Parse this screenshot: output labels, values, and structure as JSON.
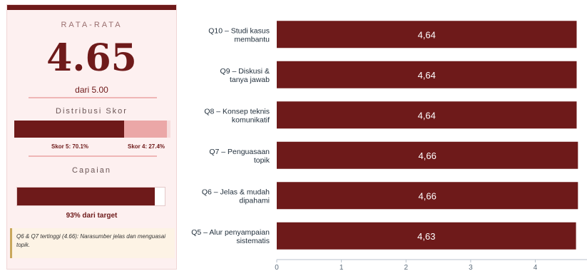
{
  "summary": {
    "avg_label": "RATA-RATA",
    "avg_value": "4.65",
    "avg_sub": "dari 5.00",
    "dist_title": "Distribusi Skor",
    "dist_segments": [
      {
        "label": "Skor 5: 70.1%",
        "percent": 70.1
      },
      {
        "label": "Skor 4: 27.4%",
        "percent": 27.4
      }
    ],
    "ach_title": "Capaian",
    "ach_percent": 93,
    "ach_label": "93% dari target",
    "note": "Q6 & Q7 tertinggi (4.66): Narasumber jelas dan menguasai topik."
  },
  "chart_data": {
    "type": "bar",
    "orientation": "horizontal",
    "categories": [
      [
        "Q10 – Studi kasus",
        "membantu"
      ],
      [
        "Q9 – Diskusi &",
        "tanya jawab"
      ],
      [
        "Q8 – Konsep teknis",
        "komunikatif"
      ],
      [
        "Q7 – Penguasaan",
        "topik"
      ],
      [
        "Q6 – Jelas & mudah",
        "dipahami"
      ],
      [
        "Q5 – Alur penyampaian",
        "sistematis"
      ]
    ],
    "values": [
      4.64,
      4.64,
      4.64,
      4.66,
      4.66,
      4.63
    ],
    "value_labels": [
      "4,64",
      "4,64",
      "4,64",
      "4,66",
      "4,66",
      "4,63"
    ],
    "xlim": [
      0,
      4.8
    ],
    "xticks": [
      "0",
      "1",
      "2",
      "3",
      "4"
    ],
    "bar_color": "#6e1a1a",
    "grid": false
  }
}
